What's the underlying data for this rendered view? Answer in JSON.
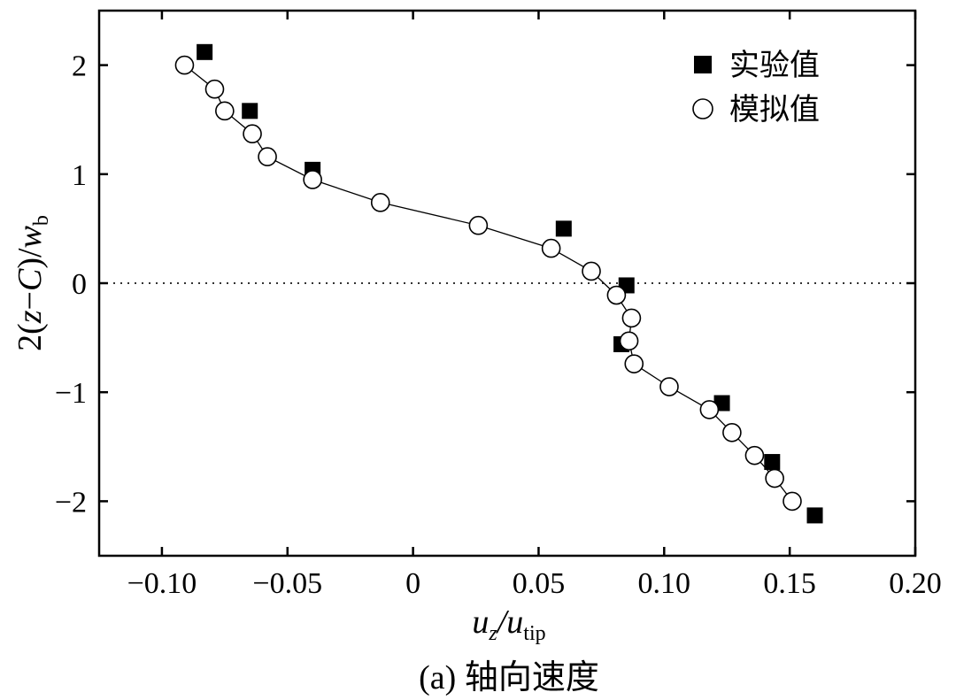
{
  "chart_data": {
    "type": "scatter",
    "caption": "(a) 轴向速度",
    "xlabel": {
      "main": "u",
      "main_sub": "z",
      "sep": "/u",
      "sep_sub": "tip"
    },
    "ylabel": {
      "prefix": "2(",
      "z": "z",
      "op": "−",
      "c": "C",
      "mid": ")/",
      "w": "w",
      "w_sub": "b"
    },
    "xlim": [
      -0.125,
      0.2
    ],
    "ylim": [
      -2.5,
      2.5
    ],
    "xticks": [
      {
        "value": -0.1,
        "label": "−0.10"
      },
      {
        "value": -0.05,
        "label": "−0.05"
      },
      {
        "value": 0,
        "label": "0"
      },
      {
        "value": 0.05,
        "label": "0.05"
      },
      {
        "value": 0.1,
        "label": "0.10"
      },
      {
        "value": 0.15,
        "label": "0.15"
      },
      {
        "value": 0.2,
        "label": "0.20"
      }
    ],
    "yticks": [
      {
        "value": 2,
        "label": "2"
      },
      {
        "value": 1,
        "label": "1"
      },
      {
        "value": 0,
        "label": "0"
      },
      {
        "value": -1,
        "label": "−1"
      },
      {
        "value": -2,
        "label": "−2"
      }
    ],
    "reference_line": {
      "y": 0,
      "style": "dotted"
    },
    "legend_position": "top-right",
    "series": [
      {
        "name": "实验值",
        "marker": "filled-square",
        "points": [
          {
            "x": -0.083,
            "y": 2.12
          },
          {
            "x": -0.065,
            "y": 1.58
          },
          {
            "x": -0.04,
            "y": 1.04
          },
          {
            "x": 0.06,
            "y": 0.5
          },
          {
            "x": 0.085,
            "y": -0.02
          },
          {
            "x": 0.083,
            "y": -0.56
          },
          {
            "x": 0.123,
            "y": -1.1
          },
          {
            "x": 0.143,
            "y": -1.64
          },
          {
            "x": 0.16,
            "y": -2.13
          }
        ]
      },
      {
        "name": "模拟值",
        "marker": "open-circle",
        "connected": true,
        "points": [
          {
            "x": -0.091,
            "y": 2.0
          },
          {
            "x": -0.079,
            "y": 1.78
          },
          {
            "x": -0.075,
            "y": 1.58
          },
          {
            "x": -0.064,
            "y": 1.37
          },
          {
            "x": -0.058,
            "y": 1.16
          },
          {
            "x": -0.04,
            "y": 0.95
          },
          {
            "x": -0.013,
            "y": 0.74
          },
          {
            "x": 0.026,
            "y": 0.53
          },
          {
            "x": 0.055,
            "y": 0.32
          },
          {
            "x": 0.071,
            "y": 0.11
          },
          {
            "x": 0.081,
            "y": -0.11
          },
          {
            "x": 0.087,
            "y": -0.32
          },
          {
            "x": 0.086,
            "y": -0.53
          },
          {
            "x": 0.088,
            "y": -0.74
          },
          {
            "x": 0.102,
            "y": -0.95
          },
          {
            "x": 0.118,
            "y": -1.16
          },
          {
            "x": 0.127,
            "y": -1.37
          },
          {
            "x": 0.136,
            "y": -1.58
          },
          {
            "x": 0.144,
            "y": -1.79
          },
          {
            "x": 0.151,
            "y": -2.0
          }
        ]
      }
    ]
  }
}
